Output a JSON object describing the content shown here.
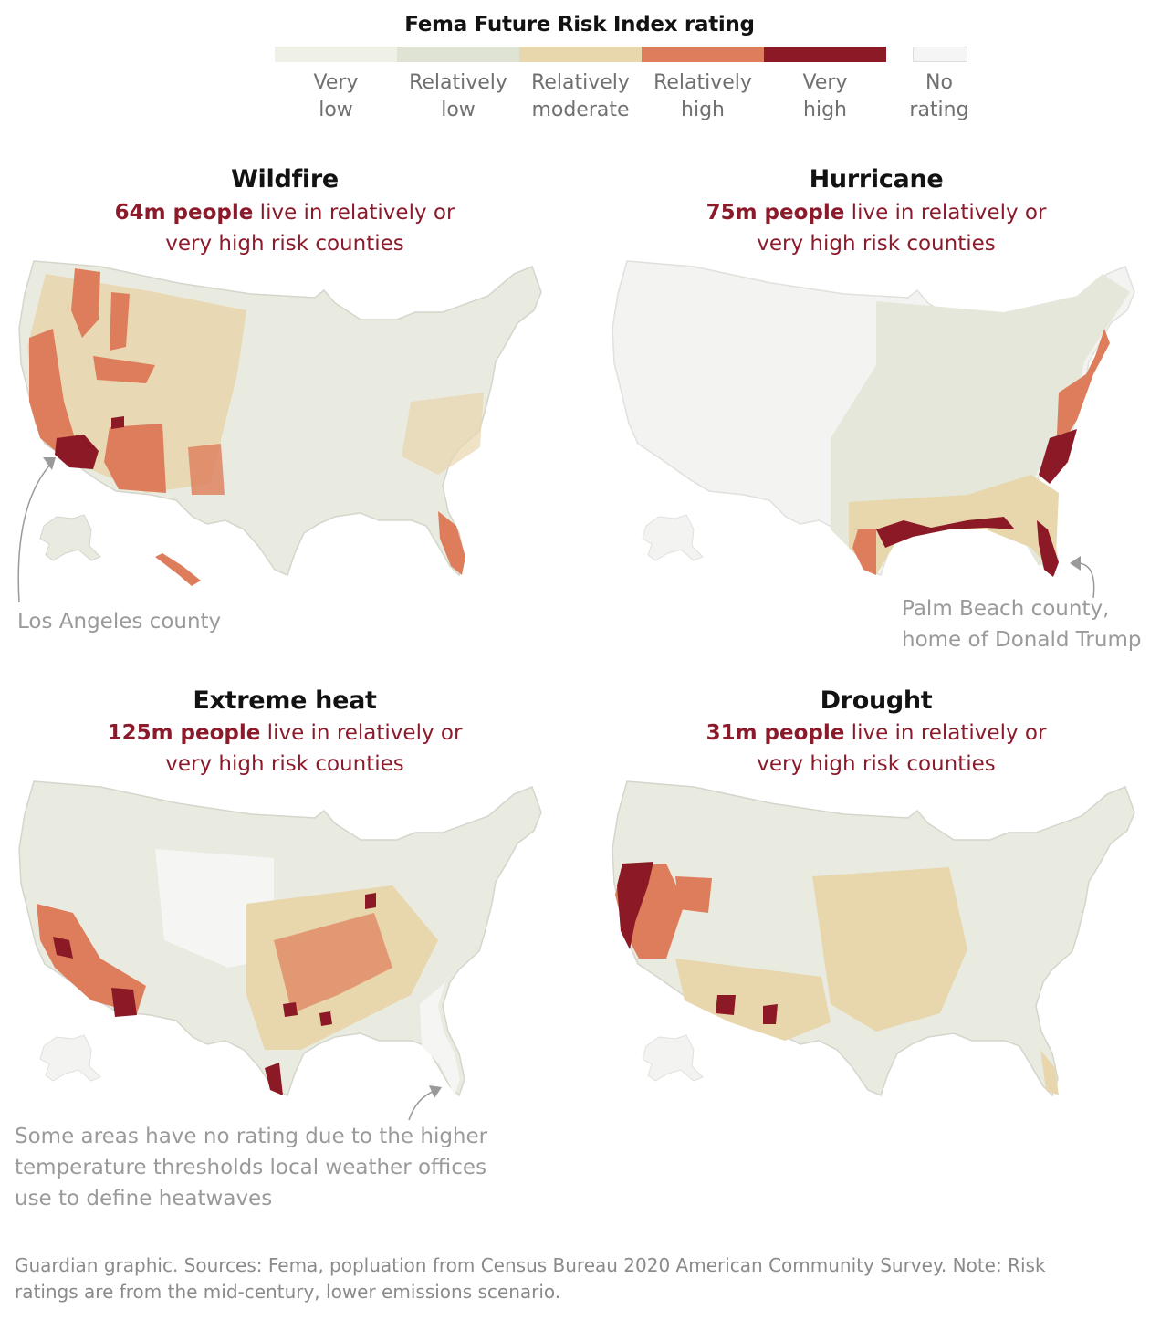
{
  "legend": {
    "title": "Fema Future Risk Index rating",
    "items": [
      {
        "line1": "Very",
        "line2": "low",
        "color": "#eff0e6"
      },
      {
        "line1": "Relatively",
        "line2": "low",
        "color": "#dfe3d4"
      },
      {
        "line1": "Relatively",
        "line2": "moderate",
        "color": "#e8d6ac"
      },
      {
        "line1": "Relatively",
        "line2": "high",
        "color": "#de7d5b"
      },
      {
        "line1": "Very",
        "line2": "high",
        "color": "#8c1a26"
      },
      {
        "line1": "No",
        "line2": "rating",
        "color": "#f5f5f5"
      }
    ]
  },
  "panels": [
    {
      "title": "Wildfire",
      "highlight": "64m people",
      "rest": " live in relatively or",
      "line2": "very high risk counties"
    },
    {
      "title": "Hurricane",
      "highlight": "75m people",
      "rest": " live in relatively or",
      "line2": "very high risk counties"
    },
    {
      "title": "Extreme heat",
      "highlight": "125m people",
      "rest": " live in relatively or",
      "line2": "very high risk counties"
    },
    {
      "title": "Drought",
      "highlight": "31m people",
      "rest": " live in relatively or",
      "line2": "very high risk counties"
    }
  ],
  "annotations": {
    "wildfire": [
      "Los Angeles county"
    ],
    "hurricane": [
      "Palm Beach county,",
      "home of Donald Trump"
    ],
    "heat": [
      "Some areas have no rating due to the higher",
      "temperature thresholds local weather offices",
      "use to define heatwaves"
    ]
  },
  "footer": {
    "line1": "Guardian graphic. Sources: Fema, popluation from Census Bureau 2020 American Community Survey. Note: Risk",
    "line2": "ratings are from the mid-century, lower emissions scenario."
  }
}
